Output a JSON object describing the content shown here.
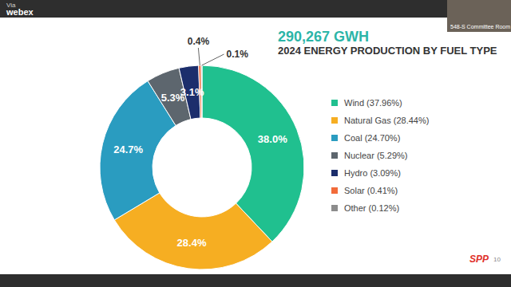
{
  "chart_data": {
    "type": "pie",
    "title": "290,267 GWH",
    "subtitle": "2024 ENERGY PRODUCTION BY FUEL TYPE",
    "categories": [
      "Wind (37.96%)",
      "Natural Gas (28.44%)",
      "Coal (24.70%)",
      "Nuclear (5.29%)",
      "Hydro (3.09%)",
      "Solar (0.41%)",
      "Other (0.12%)"
    ],
    "values": [
      37.96,
      28.44,
      24.7,
      5.29,
      3.09,
      0.41,
      0.12
    ],
    "value_labels": [
      "38.0%",
      "28.4%",
      "24.7%",
      "5.3%",
      "3.1%",
      "0.4%",
      "0.1%"
    ],
    "colors": [
      "#20c08f",
      "#f6ae22",
      "#2a9cc0",
      "#5d666e",
      "#1c2e6c",
      "#f26b3a",
      "#8c8c8c"
    ],
    "data_labels": true,
    "legend": "right",
    "annotations": [
      "Via",
      "webex",
      "548-S Committee Room",
      "SPP",
      "10"
    ]
  }
}
